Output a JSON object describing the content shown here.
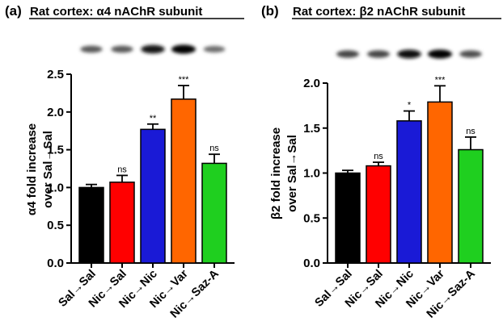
{
  "chart_data": [
    {
      "type": "bar",
      "panel_label": "(a)",
      "title": "Rat cortex: α4 nAChR subunit",
      "ylabel": "α4 fold increase\nover Sal→Sal",
      "xlabel": "",
      "ylim": [
        0,
        2.5
      ],
      "yticks": [
        "0.0",
        "0.5",
        "1.0",
        "1.5",
        "2.0",
        "2.5"
      ],
      "categories": [
        "Sal→Sal",
        "Nic→Sal",
        "Nic→Nic",
        "Nic→Var",
        "Nic→Saz-A"
      ],
      "values": [
        1.0,
        1.07,
        1.77,
        2.17,
        1.32
      ],
      "errors": [
        0.04,
        0.09,
        0.07,
        0.18,
        0.12
      ],
      "significance": [
        "",
        "ns",
        "**",
        "***",
        "ns"
      ],
      "colors": [
        "#000000",
        "#ff0000",
        "#1a1ad6",
        "#ff6600",
        "#1fcf1f"
      ],
      "blot_intensity": [
        0.55,
        0.55,
        0.9,
        1.0,
        0.45
      ]
    },
    {
      "type": "bar",
      "panel_label": "(b)",
      "title": "Rat cortex: β2 nAChR subunit",
      "ylabel": "β2 fold increase\nover Sal→Sal",
      "xlabel": "",
      "ylim": [
        0,
        2.0
      ],
      "yticks": [
        "0.0",
        "0.5",
        "1.0",
        "1.5",
        "2.0"
      ],
      "categories": [
        "Sal→Sal",
        "Nic→Sal",
        "Nic→Nic",
        "Nic→Var",
        "Nic→Saz-A"
      ],
      "values": [
        1.0,
        1.08,
        1.58,
        1.79,
        1.26
      ],
      "errors": [
        0.03,
        0.04,
        0.11,
        0.18,
        0.14
      ],
      "significance": [
        "",
        "ns",
        "*",
        "***",
        "ns"
      ],
      "colors": [
        "#000000",
        "#ff0000",
        "#1a1ad6",
        "#ff6600",
        "#1fcf1f"
      ],
      "blot_intensity": [
        0.65,
        0.65,
        0.95,
        1.0,
        0.6
      ]
    }
  ]
}
